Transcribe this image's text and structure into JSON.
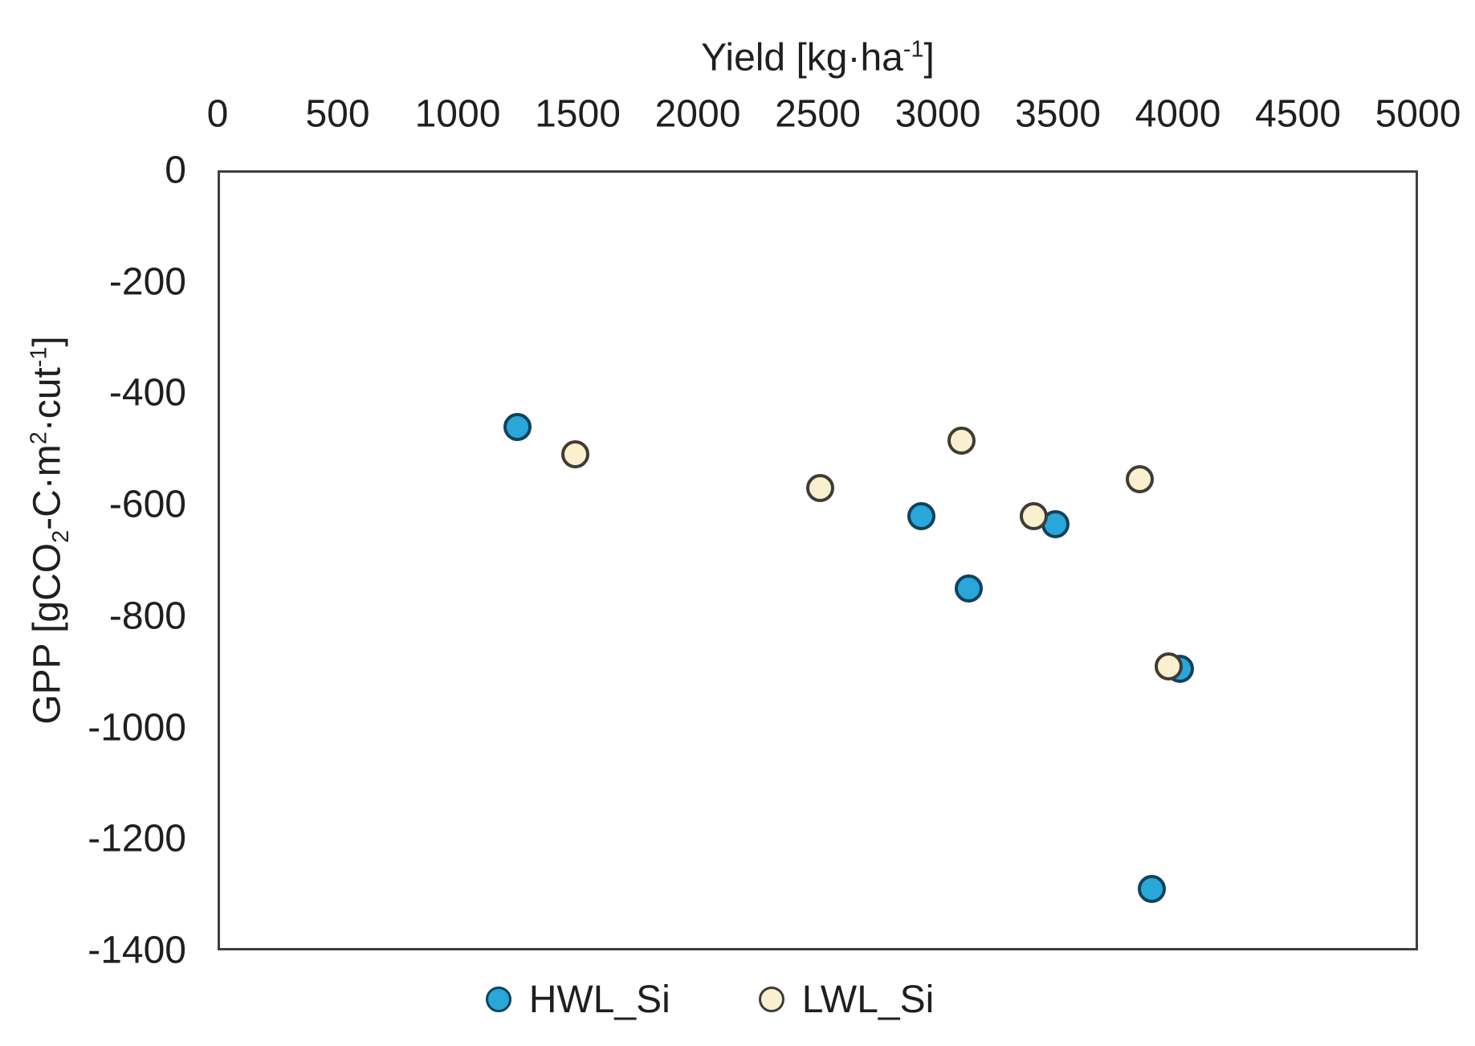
{
  "chart_data": {
    "type": "scatter",
    "xlabel": "Yield [kg·ha⁻¹]",
    "xlabel_segments": [
      {
        "t": "Yield [kg·ha",
        "s": "n"
      },
      {
        "t": "-1",
        "s": "sup"
      },
      {
        "t": "]",
        "s": "n"
      }
    ],
    "ylabel": "GPP [gCO₂-C·m²·cut⁻¹]",
    "ylabel_segments": [
      {
        "t": "GPP [gCO",
        "s": "n"
      },
      {
        "t": "2",
        "s": "sub"
      },
      {
        "t": "-C·m",
        "s": "n"
      },
      {
        "t": "2",
        "s": "sup"
      },
      {
        "t": "·cut",
        "s": "n"
      },
      {
        "t": "-1",
        "s": "sup"
      },
      {
        "t": "]",
        "s": "n"
      }
    ],
    "xlim": [
      0,
      5000
    ],
    "ylim": [
      -1400,
      0
    ],
    "x_ticks": [
      0,
      500,
      1000,
      1500,
      2000,
      2500,
      3000,
      3500,
      4000,
      4500,
      5000
    ],
    "y_ticks": [
      0,
      -200,
      -400,
      -600,
      -800,
      -1000,
      -1200,
      -1400
    ],
    "grid": false,
    "legend_position": "bottom-center",
    "frame_color": "#3f3f3f",
    "text_color": "#1f1f1f",
    "series": [
      {
        "name": "HWL_Si",
        "marker_fill": "#28A7D8",
        "marker_stroke": "#12425C",
        "points": [
          [
            1250,
            -460
          ],
          [
            2930,
            -620
          ],
          [
            3130,
            -750
          ],
          [
            3490,
            -635
          ],
          [
            4010,
            -895
          ],
          [
            3890,
            -1290
          ]
        ]
      },
      {
        "name": "LWL_Si",
        "marker_fill": "#FAF0D0",
        "marker_stroke": "#403C34",
        "points": [
          [
            1490,
            -510
          ],
          [
            2510,
            -570
          ],
          [
            3100,
            -485
          ],
          [
            3400,
            -620
          ],
          [
            3840,
            -555
          ],
          [
            3960,
            -890
          ]
        ]
      }
    ]
  }
}
